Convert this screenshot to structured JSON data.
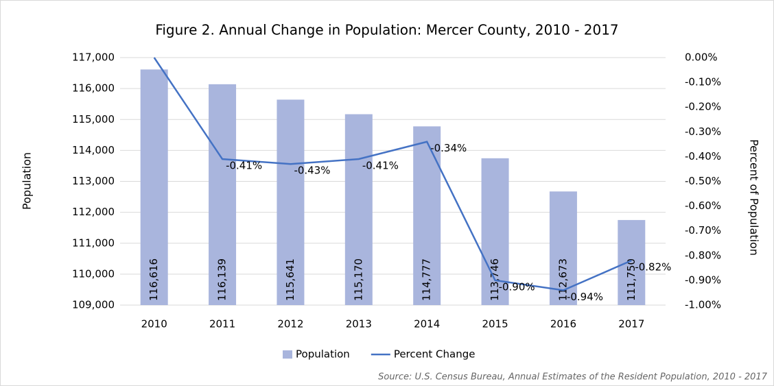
{
  "chart_data": {
    "type": "bar-line",
    "title": "Figure 2. Annual Change in Population: Mercer County, 2010 - 2017",
    "y_label": "Population",
    "y2_label": "Percent of Population",
    "source": "Source: U.S. Census Bureau, Annual Estimates of the Resident Population, 2010 - 2017",
    "categories": [
      "2010",
      "2011",
      "2012",
      "2013",
      "2014",
      "2015",
      "2016",
      "2017"
    ],
    "series": [
      {
        "name": "Population",
        "type": "bar",
        "color": "#a9b5dd",
        "values": [
          116616,
          116139,
          115641,
          115170,
          114777,
          113746,
          112673,
          111750
        ],
        "value_labels": [
          "116,616",
          "116,139",
          "115,641",
          "115,170",
          "114,777",
          "113,746",
          "112,673",
          "111,750"
        ]
      },
      {
        "name": "Percent Change",
        "type": "line",
        "axis": "y2",
        "color": "#4472c4",
        "values": [
          0,
          -0.41,
          -0.43,
          -0.41,
          -0.34,
          -0.9,
          -0.94,
          -0.82
        ],
        "value_labels": [
          null,
          "-0.41%",
          "-0.43%",
          "-0.41%",
          "-0.34%",
          "-0.90%",
          "-0.94%",
          "-0.82%"
        ]
      }
    ],
    "ylim": [
      109000,
      117000
    ],
    "yticks": [
      {
        "value": 109000,
        "label": "109,000"
      },
      {
        "value": 110000,
        "label": "110,000"
      },
      {
        "value": 111000,
        "label": "111,000"
      },
      {
        "value": 112000,
        "label": "112,000"
      },
      {
        "value": 113000,
        "label": "113,000"
      },
      {
        "value": 114000,
        "label": "114,000"
      },
      {
        "value": 115000,
        "label": "115,000"
      },
      {
        "value": 116000,
        "label": "116,000"
      },
      {
        "value": 117000,
        "label": "117,000"
      }
    ],
    "y2lim": [
      -1,
      0
    ],
    "y2ticks": [
      {
        "value": 0,
        "label": "0.00%"
      },
      {
        "value": -0.1,
        "label": "-0.10%"
      },
      {
        "value": -0.2,
        "label": "-0.20%"
      },
      {
        "value": -0.3,
        "label": "-0.30%"
      },
      {
        "value": -0.4,
        "label": "-0.40%"
      },
      {
        "value": -0.5,
        "label": "-0.50%"
      },
      {
        "value": -0.6,
        "label": "-0.60%"
      },
      {
        "value": -0.7,
        "label": "-0.70%"
      },
      {
        "value": -0.8,
        "label": "-0.80%"
      },
      {
        "value": -0.9,
        "label": "-0.90%"
      },
      {
        "value": -1,
        "label": "-1.00%"
      }
    ],
    "grid": true,
    "legend": "bottom"
  }
}
